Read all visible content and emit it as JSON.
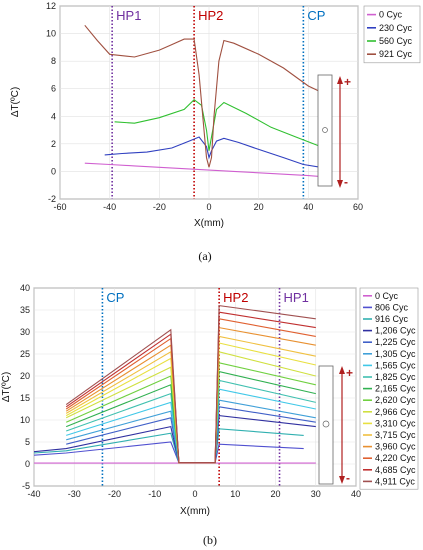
{
  "chart_data": [
    {
      "type": "line",
      "panel_label": "(a)",
      "xlabel": "X(mm)",
      "ylabel": "ΔT(ºC)",
      "xlim": [
        -60,
        60
      ],
      "ylim": [
        -2,
        12
      ],
      "xticks": [
        -60,
        -40,
        -20,
        0,
        20,
        40,
        60
      ],
      "yticks": [
        -2,
        0,
        2,
        4,
        6,
        8,
        10,
        12
      ],
      "grid": true,
      "legend_position": "right",
      "vertical_lines": [
        {
          "label": "HP1",
          "x": -39,
          "color": "#7030a0"
        },
        {
          "label": "HP2",
          "x": -6,
          "color": "#c00000"
        },
        {
          "label": "CP",
          "x": 38,
          "color": "#0070c0"
        }
      ],
      "series": [
        {
          "name": "0 Cyc",
          "color": "#d060d0",
          "x": [
            -50,
            -40,
            -30,
            -20,
            -10,
            0,
            10,
            20,
            30,
            40,
            47
          ],
          "y": [
            0.6,
            0.5,
            0.4,
            0.3,
            0.2,
            0.1,
            0.0,
            -0.1,
            -0.2,
            -0.3,
            -0.4
          ]
        },
        {
          "name": "230 Cyc",
          "color": "#3040c0",
          "x": [
            -42,
            -35,
            -25,
            -15,
            -8,
            -4,
            -1,
            0,
            1,
            3,
            6,
            12,
            20,
            30,
            38,
            45,
            47
          ],
          "y": [
            1.2,
            1.3,
            1.4,
            1.7,
            2.2,
            2.5,
            1.8,
            1.0,
            1.5,
            2.2,
            2.4,
            2.1,
            1.6,
            1.0,
            0.5,
            0.3,
            0.3
          ]
        },
        {
          "name": "560 Cyc",
          "color": "#30c030",
          "x": [
            -38,
            -30,
            -20,
            -10,
            -6,
            -3,
            -1,
            0,
            1,
            3,
            6,
            15,
            25,
            35,
            45,
            47
          ],
          "y": [
            3.6,
            3.5,
            3.9,
            4.5,
            5.2,
            4.8,
            3.0,
            1.5,
            2.5,
            4.5,
            5.0,
            4.2,
            3.2,
            2.5,
            1.8,
            1.7
          ]
        },
        {
          "name": "921 Cyc",
          "color": "#a05040",
          "x": [
            -50,
            -45,
            -40,
            -30,
            -20,
            -15,
            -10,
            -6,
            -4,
            -2,
            -1,
            0,
            1,
            2,
            4,
            6,
            10,
            20,
            30,
            40,
            47
          ],
          "y": [
            10.6,
            9.5,
            8.5,
            8.3,
            8.8,
            9.2,
            9.6,
            9.6,
            7.0,
            3.0,
            1.0,
            0.3,
            1.0,
            4.0,
            8.0,
            9.5,
            9.3,
            8.5,
            7.5,
            6.2,
            5.6
          ]
        }
      ]
    },
    {
      "type": "line",
      "panel_label": "(b)",
      "xlabel": "X(mm)",
      "ylabel": "ΔT(ºC)",
      "xlim": [
        -40,
        40
      ],
      "ylim": [
        -5,
        40
      ],
      "xticks": [
        -40,
        -30,
        -20,
        -10,
        0,
        10,
        20,
        30,
        40
      ],
      "yticks": [
        -5,
        0,
        5,
        10,
        15,
        20,
        25,
        30,
        35,
        40
      ],
      "grid": true,
      "legend_position": "right",
      "vertical_lines": [
        {
          "label": "CP",
          "x": -23,
          "color": "#0070c0"
        },
        {
          "label": "HP2",
          "x": 6,
          "color": "#c00000"
        },
        {
          "label": "HP1",
          "x": 21,
          "color": "#7030a0"
        }
      ],
      "series": [
        {
          "name": "0 Cyc",
          "color": "#d060d0",
          "x": [
            -40,
            30
          ],
          "y": [
            0.2,
            0.2
          ]
        },
        {
          "name": "806 Cyc",
          "color": "#5050d0",
          "x": [
            -40,
            -32,
            -6,
            -4,
            5,
            6,
            27
          ],
          "y": [
            2.0,
            2.5,
            5.0,
            0.3,
            0.3,
            4.5,
            3.5
          ]
        },
        {
          "name": "916 Cyc",
          "color": "#30b0b0",
          "x": [
            -40,
            -32,
            -6,
            -4,
            5,
            6,
            27
          ],
          "y": [
            2.5,
            3.0,
            7.0,
            0.3,
            0.3,
            8.0,
            6.5
          ]
        },
        {
          "name": "1,206 Cyc",
          "color": "#3030a0",
          "x": [
            -40,
            -32,
            -6,
            -4,
            5,
            6,
            30
          ],
          "y": [
            2.8,
            3.5,
            8.5,
            0.3,
            0.3,
            11.0,
            8.5
          ]
        },
        {
          "name": "1,225 Cyc",
          "color": "#4060c8",
          "x": [
            -32,
            -6,
            -4,
            5,
            6,
            30
          ],
          "y": [
            4.5,
            10.5,
            0.3,
            0.3,
            13.0,
            9.5
          ]
        },
        {
          "name": "1,305 Cyc",
          "color": "#40a0d8",
          "x": [
            -32,
            -6,
            -4,
            5,
            6,
            30
          ],
          "y": [
            5.5,
            12.0,
            0.3,
            0.3,
            14.5,
            10.5
          ]
        },
        {
          "name": "1,565 Cyc",
          "color": "#40c8e8",
          "x": [
            -32,
            -6,
            -4,
            5,
            6,
            30
          ],
          "y": [
            6.5,
            14.0,
            0.3,
            0.3,
            17.0,
            12.5
          ]
        },
        {
          "name": "1,825 Cyc",
          "color": "#40c0b0",
          "x": [
            -32,
            -6,
            -4,
            5,
            6,
            30
          ],
          "y": [
            7.5,
            16.0,
            0.3,
            0.3,
            19.0,
            14.0
          ]
        },
        {
          "name": "2,165 Cyc",
          "color": "#30b050",
          "x": [
            -32,
            -6,
            -4,
            5,
            6,
            30
          ],
          "y": [
            8.5,
            18.0,
            0.3,
            0.3,
            21.0,
            16.0
          ]
        },
        {
          "name": "2,620 Cyc",
          "color": "#70d040",
          "x": [
            -32,
            -6,
            -4,
            5,
            6,
            30
          ],
          "y": [
            9.5,
            20.0,
            0.3,
            0.3,
            23.0,
            18.0
          ]
        },
        {
          "name": "2,966 Cyc",
          "color": "#d0e040",
          "x": [
            -32,
            -6,
            -4,
            5,
            6,
            30
          ],
          "y": [
            10.5,
            22.0,
            0.3,
            0.3,
            25.5,
            20.0
          ]
        },
        {
          "name": "3,310 Cyc",
          "color": "#e8e040",
          "x": [
            -32,
            -6,
            -4,
            5,
            6,
            30
          ],
          "y": [
            11.0,
            24.0,
            0.3,
            0.3,
            27.5,
            22.5
          ]
        },
        {
          "name": "3,715 Cyc",
          "color": "#f0c040",
          "x": [
            -32,
            -6,
            -4,
            5,
            6,
            30
          ],
          "y": [
            11.5,
            25.5,
            0.3,
            0.3,
            29.0,
            24.5
          ]
        },
        {
          "name": "3,960 Cyc",
          "color": "#e89030",
          "x": [
            -32,
            -6,
            -4,
            5,
            6,
            30
          ],
          "y": [
            12.0,
            27.0,
            0.3,
            0.3,
            31.0,
            27.0
          ]
        },
        {
          "name": "4,220 Cyc",
          "color": "#e06030",
          "x": [
            -32,
            -6,
            -4,
            5,
            6,
            30
          ],
          "y": [
            12.5,
            28.5,
            0.3,
            0.3,
            33.0,
            29.0
          ]
        },
        {
          "name": "4,685 Cyc",
          "color": "#c03030",
          "x": [
            -32,
            -6,
            -4,
            5,
            6,
            30
          ],
          "y": [
            13.0,
            29.5,
            0.3,
            0.3,
            34.5,
            31.0
          ]
        },
        {
          "name": "4,911 Cyc",
          "color": "#a05050",
          "x": [
            -32,
            -6,
            -4,
            5,
            6,
            30
          ],
          "y": [
            13.5,
            30.5,
            0.3,
            0.3,
            36.0,
            33.0
          ]
        }
      ]
    }
  ],
  "schematic": {
    "plus": "+",
    "minus": "-"
  }
}
